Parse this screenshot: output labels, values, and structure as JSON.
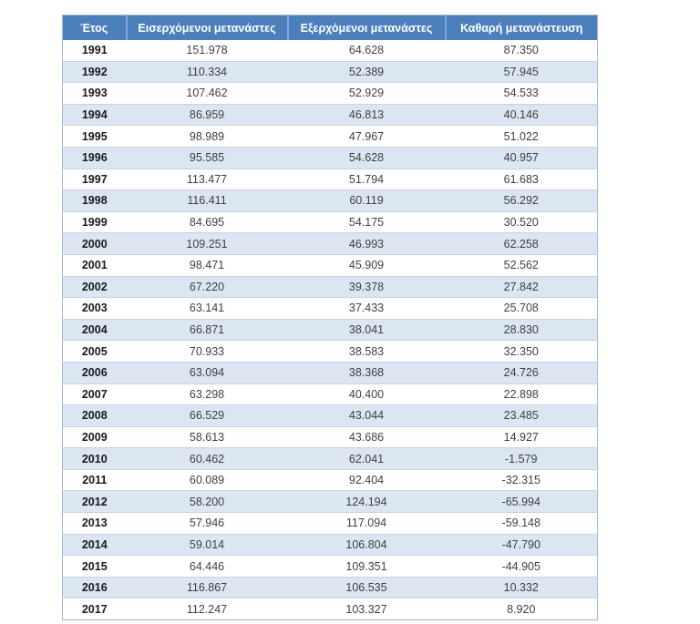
{
  "chart_data": {
    "type": "table",
    "title": "",
    "columns": [
      "Έτος",
      "Εισερχόμενοι μετανάστες",
      "Εξερχόμενοι μετανάστες",
      "Καθαρή μετανάστευση"
    ],
    "rows": [
      [
        "1991",
        "151.978",
        "64.628",
        "87.350"
      ],
      [
        "1992",
        "110.334",
        "52.389",
        "57.945"
      ],
      [
        "1993",
        "107.462",
        "52.929",
        "54.533"
      ],
      [
        "1994",
        "86.959",
        "46.813",
        "40.146"
      ],
      [
        "1995",
        "98.989",
        "47.967",
        "51.022"
      ],
      [
        "1996",
        "95.585",
        "54.628",
        "40.957"
      ],
      [
        "1997",
        "113.477",
        "51.794",
        "61.683"
      ],
      [
        "1998",
        "116.411",
        "60.119",
        "56.292"
      ],
      [
        "1999",
        "84.695",
        "54.175",
        "30.520"
      ],
      [
        "2000",
        "109.251",
        "46.993",
        "62.258"
      ],
      [
        "2001",
        "98.471",
        "45.909",
        "52.562"
      ],
      [
        "2002",
        "67.220",
        "39.378",
        "27.842"
      ],
      [
        "2003",
        "63.141",
        "37.433",
        "25.708"
      ],
      [
        "2004",
        "66.871",
        "38.041",
        "28.830"
      ],
      [
        "2005",
        "70.933",
        "38.583",
        "32.350"
      ],
      [
        "2006",
        "63.094",
        "38.368",
        "24.726"
      ],
      [
        "2007",
        "63.298",
        "40.400",
        "22.898"
      ],
      [
        "2008",
        "66.529",
        "43.044",
        "23.485"
      ],
      [
        "2009",
        "58.613",
        "43.686",
        "14.927"
      ],
      [
        "2010",
        "60.462",
        "62.041",
        "-1.579"
      ],
      [
        "2011",
        "60.089",
        "92.404",
        "-32.315"
      ],
      [
        "2012",
        "58.200",
        "124.194",
        "-65.994"
      ],
      [
        "2013",
        "57.946",
        "117.094",
        "-59.148"
      ],
      [
        "2014",
        "59.014",
        "106.804",
        "-47.790"
      ],
      [
        "2015",
        "64.446",
        "109.351",
        "-44.905"
      ],
      [
        "2016",
        "116.867",
        "106.535",
        "10.332"
      ],
      [
        "2017",
        "112.247",
        "103.327",
        "8.920"
      ]
    ]
  },
  "colors": {
    "header_bg": "#4b80bd",
    "header_text": "#ffffff",
    "header_sep": "#7ea7d8",
    "band_bg": "#dbe6f2",
    "outer_border": "#9cb9dd",
    "row_line": "#c3d4e9",
    "cell_text": "#3f3f3f",
    "year_text": "#1a1a1a",
    "page_bg": "#ffffff"
  }
}
